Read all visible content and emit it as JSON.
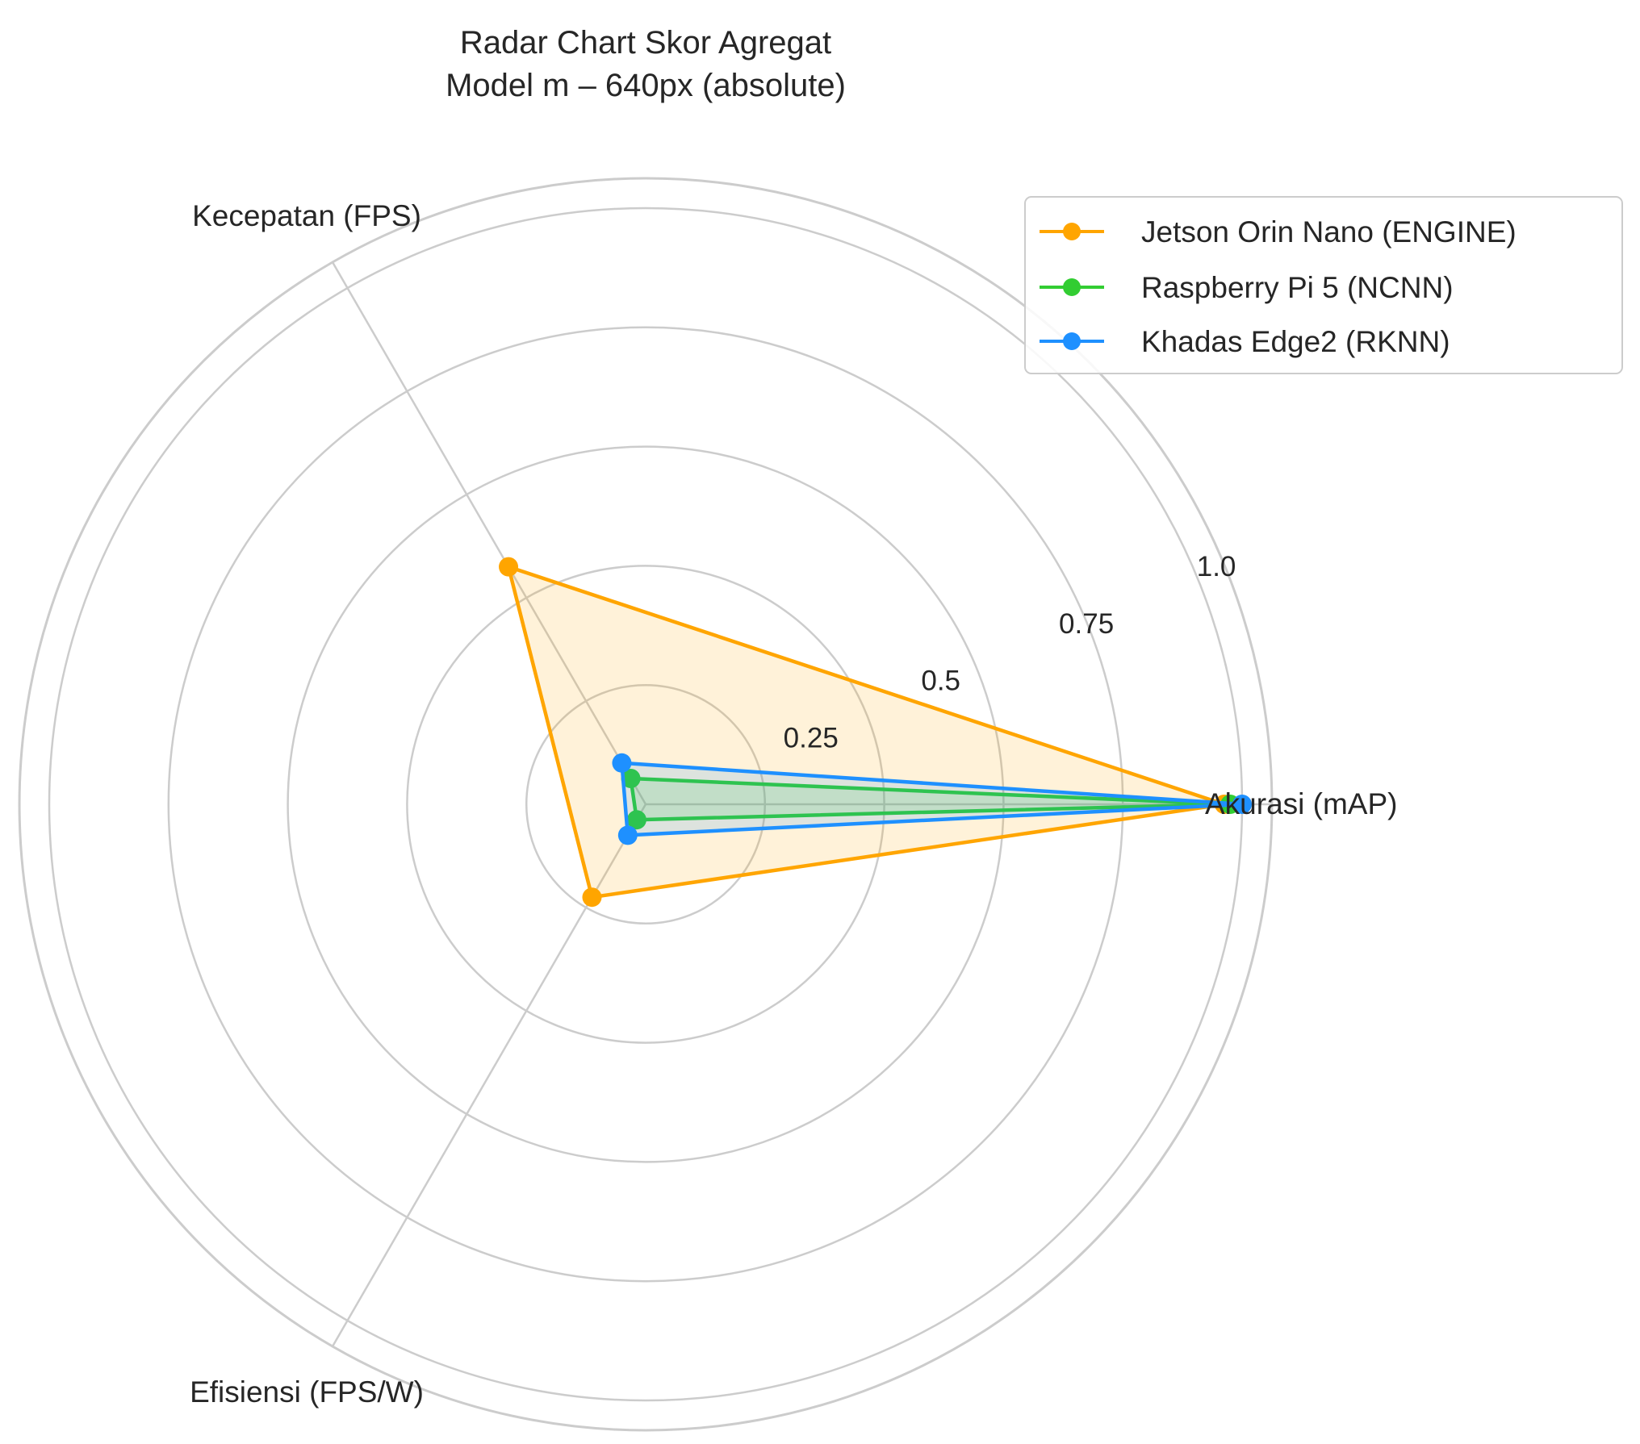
{
  "chart_data": {
    "type": "radar",
    "title": "Radar Chart Skor Agregat",
    "subtitle": "Model m – 640px (absolute)",
    "axes": [
      "Akurasi (mAP)",
      "Kecepatan (FPS)",
      "Efisiensi (FPS/W)"
    ],
    "rticks": [
      {
        "value": 0.25,
        "label": "0.25"
      },
      {
        "value": 0.5,
        "label": "0.5"
      },
      {
        "value": 0.75,
        "label": "0.75"
      },
      {
        "value": 1.0,
        "label": "1.0"
      }
    ],
    "rlim": [
      0,
      1.05
    ],
    "grid": true,
    "legend_position": "top-right",
    "series": [
      {
        "name": "Jetson Orin Nano (ENGINE)",
        "color": "#FFA500",
        "values": [
          0.97,
          0.46,
          0.18
        ]
      },
      {
        "name": "Raspberry Pi 5 (NCNN)",
        "color": "#32CD32",
        "values": [
          0.98,
          0.05,
          0.03
        ]
      },
      {
        "name": "Khadas Edge2 (RKNN)",
        "color": "#1E90FF",
        "values": [
          1.0,
          0.08,
          0.06
        ]
      }
    ]
  }
}
